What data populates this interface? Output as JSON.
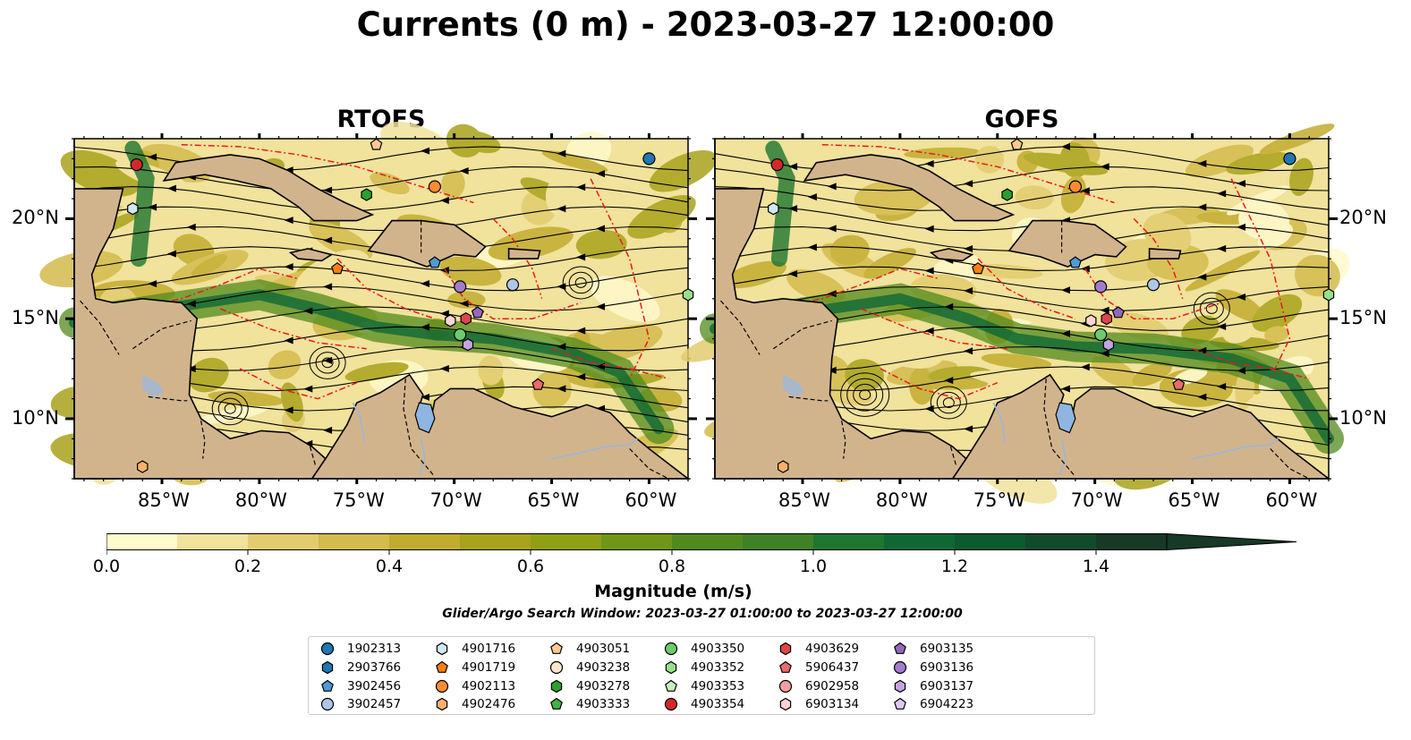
{
  "title": "Currents (0 m) - 2023-03-27 12:00:00",
  "panels": [
    {
      "title": "RTOFS"
    },
    {
      "title": "GOFS"
    }
  ],
  "map_extent": {
    "lon_min": -89.5,
    "lon_max": -58.0,
    "lat_min": 7.0,
    "lat_max": 24.0
  },
  "x_ticks": [
    {
      "lon": -85,
      "label": "85°W"
    },
    {
      "lon": -80,
      "label": "80°W"
    },
    {
      "lon": -75,
      "label": "75°W"
    },
    {
      "lon": -70,
      "label": "70°W"
    },
    {
      "lon": -65,
      "label": "65°W"
    },
    {
      "lon": -60,
      "label": "60°W"
    }
  ],
  "y_ticks": [
    {
      "lat": 20,
      "label": "20°N"
    },
    {
      "lat": 15,
      "label": "15°N"
    },
    {
      "lat": 10,
      "label": "10°N"
    }
  ],
  "colorbar": {
    "label": "Magnitude (m/s)",
    "min": 0.0,
    "max": 1.5,
    "extend": "max",
    "ticks": [
      {
        "value": 0.0,
        "label": "0.0"
      },
      {
        "value": 0.2,
        "label": "0.2"
      },
      {
        "value": 0.4,
        "label": "0.4"
      },
      {
        "value": 0.6,
        "label": "0.6"
      },
      {
        "value": 0.8,
        "label": "0.8"
      },
      {
        "value": 1.0,
        "label": "1.0"
      },
      {
        "value": 1.2,
        "label": "1.2"
      },
      {
        "value": 1.4,
        "label": "1.4"
      }
    ],
    "colors": [
      "#fffacc",
      "#f1e29c",
      "#e2cc6e",
      "#d3bb4c",
      "#c2ac30",
      "#a8a21c",
      "#8fa013",
      "#6f9616",
      "#52891c",
      "#3f8127",
      "#1e7630",
      "#0f6834",
      "#0d5a30",
      "#124a2c",
      "#173925"
    ]
  },
  "subtitle": "Glider/Argo Search Window: 2023-03-27 01:00:00 to 2023-03-27 12:00:00",
  "colors": {
    "land": "#d2b48c",
    "lake": "#8fb5e0",
    "river": "#a0b7d0",
    "eez": "#e81a1a"
  },
  "floats": [
    {
      "id": "1902313",
      "marker": "circle",
      "color": "#1f77b4",
      "lon": -60.0,
      "lat": 23.0
    },
    {
      "id": "2903766",
      "marker": "hexagon",
      "color": "#1f77b4",
      "lon": null,
      "lat": null
    },
    {
      "id": "3902456",
      "marker": "pentagon",
      "color": "#4e9ad8",
      "lon": -71.0,
      "lat": 17.8
    },
    {
      "id": "3902457",
      "marker": "circle",
      "color": "#aec7e8",
      "lon": -67.0,
      "lat": 16.7
    },
    {
      "id": "4901716",
      "marker": "hexagon",
      "color": "#cfe8f5",
      "lon": -86.5,
      "lat": 20.5
    },
    {
      "id": "4901719",
      "marker": "pentagon",
      "color": "#ff7f0e",
      "lon": -76.0,
      "lat": 17.5
    },
    {
      "id": "4902113",
      "marker": "circle",
      "color": "#ff8c35",
      "lon": -71.0,
      "lat": 21.6
    },
    {
      "id": "4902476",
      "marker": "hexagon",
      "color": "#ffb06a",
      "lon": -86.0,
      "lat": 7.6
    },
    {
      "id": "4903051",
      "marker": "pentagon",
      "color": "#ffc890",
      "lon": -74.0,
      "lat": 23.7
    },
    {
      "id": "4903238",
      "marker": "circle",
      "color": "#fde6cc",
      "lon": null,
      "lat": null
    },
    {
      "id": "4903278",
      "marker": "hexagon",
      "color": "#2ca02c",
      "lon": -74.5,
      "lat": 21.2
    },
    {
      "id": "4903333",
      "marker": "pentagon",
      "color": "#44b044",
      "lon": null,
      "lat": null
    },
    {
      "id": "4903350",
      "marker": "circle",
      "color": "#6ccb6c",
      "lon": -69.7,
      "lat": 14.2
    },
    {
      "id": "4903352",
      "marker": "hexagon",
      "color": "#98df8a",
      "lon": -58.0,
      "lat": 16.2
    },
    {
      "id": "4903353",
      "marker": "pentagon",
      "color": "#c8f0c0",
      "lon": null,
      "lat": null
    },
    {
      "id": "4903354",
      "marker": "circle",
      "color": "#d62728",
      "lon": -86.3,
      "lat": 22.7
    },
    {
      "id": "4903629",
      "marker": "hexagon",
      "color": "#e0454a",
      "lon": -69.4,
      "lat": 15.0
    },
    {
      "id": "5906437",
      "marker": "pentagon",
      "color": "#ea6b6b",
      "lon": -65.7,
      "lat": 11.7
    },
    {
      "id": "6902958",
      "marker": "circle",
      "color": "#f5a0a0",
      "lon": null,
      "lat": null
    },
    {
      "id": "6903134",
      "marker": "hexagon",
      "color": "#fcd4d4",
      "lon": -70.2,
      "lat": 14.9
    },
    {
      "id": "6903135",
      "marker": "pentagon",
      "color": "#9467bd",
      "lon": -68.8,
      "lat": 15.3
    },
    {
      "id": "6903136",
      "marker": "circle",
      "color": "#a27cc8",
      "lon": -69.7,
      "lat": 16.6
    },
    {
      "id": "6903137",
      "marker": "hexagon",
      "color": "#c5a3e3",
      "lon": -69.3,
      "lat": 13.7
    },
    {
      "id": "6904223",
      "marker": "pentagon",
      "color": "#e0c8f4",
      "lon": null,
      "lat": null
    }
  ]
}
